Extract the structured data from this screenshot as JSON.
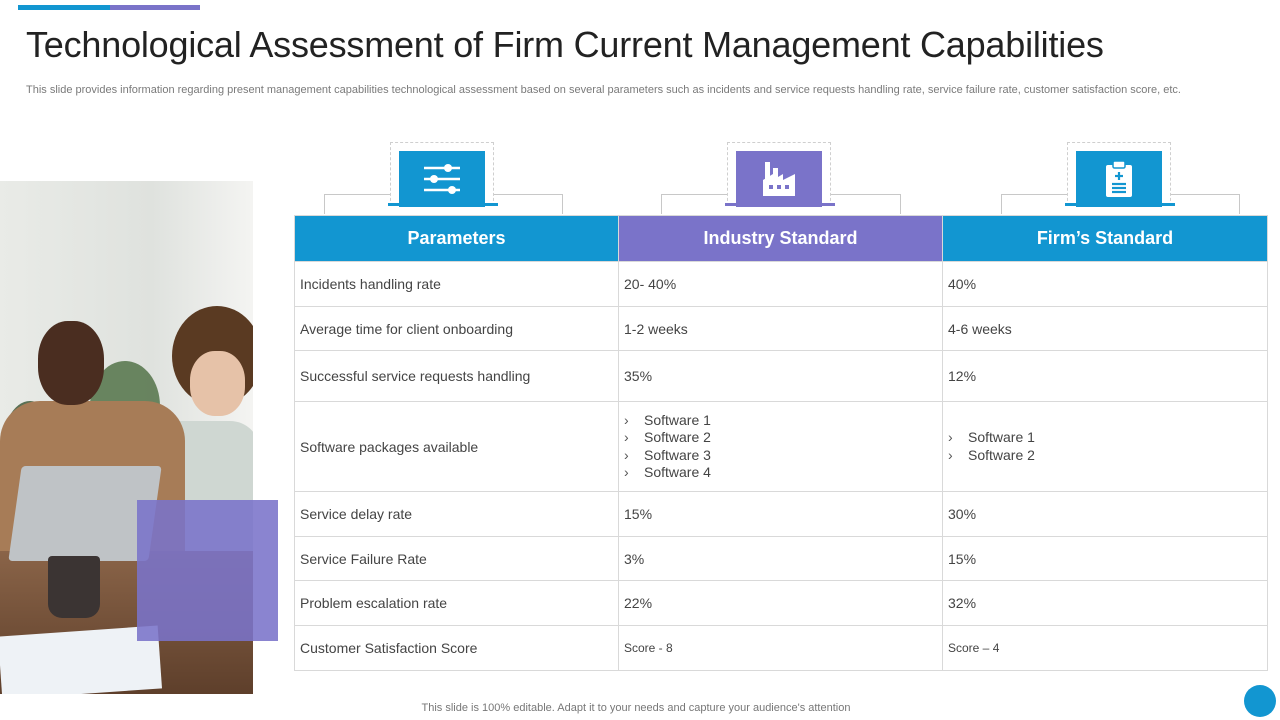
{
  "slide": {
    "title": "Technological Assessment of Firm Current Management Capabilities",
    "subtitle": "This slide provides information regarding present management capabilities technological assessment based on several parameters such as incidents and service requests handling rate, service failure rate, customer satisfaction score, etc.",
    "footer": "This slide is 100% editable. Adapt it to your needs and capture your audience's attention"
  },
  "colors": {
    "blue": "#1296d1",
    "purple": "#7a73c9"
  },
  "icons": [
    "sliders-icon",
    "factory-icon",
    "clipboard-icon"
  ],
  "table": {
    "headers": [
      "Parameters",
      "Industry Standard",
      "Firm’s Standard"
    ],
    "rows": [
      {
        "parameter": "Incidents handling rate",
        "industry": "20- 40%",
        "firm": "40%"
      },
      {
        "parameter": "Average time for client onboarding",
        "industry": "1-2 weeks",
        "firm": "4-6 weeks"
      },
      {
        "parameter": "Successful service requests handling",
        "industry": "35%",
        "firm": "12%"
      },
      {
        "parameter": "Software packages available",
        "industry_list": [
          "Software 1",
          "Software 2",
          "Software 3",
          "Software 4"
        ],
        "firm_list": [
          "Software 1",
          "Software 2"
        ]
      },
      {
        "parameter": "Service delay rate",
        "industry": "15%",
        "firm": "30%"
      },
      {
        "parameter": "Service Failure Rate",
        "industry": "3%",
        "firm": "15%"
      },
      {
        "parameter": "Problem escalation rate",
        "industry": "22%",
        "firm": "32%"
      },
      {
        "parameter": "Customer Satisfaction Score",
        "industry": "Score - 8",
        "firm": "Score – 4"
      }
    ]
  }
}
